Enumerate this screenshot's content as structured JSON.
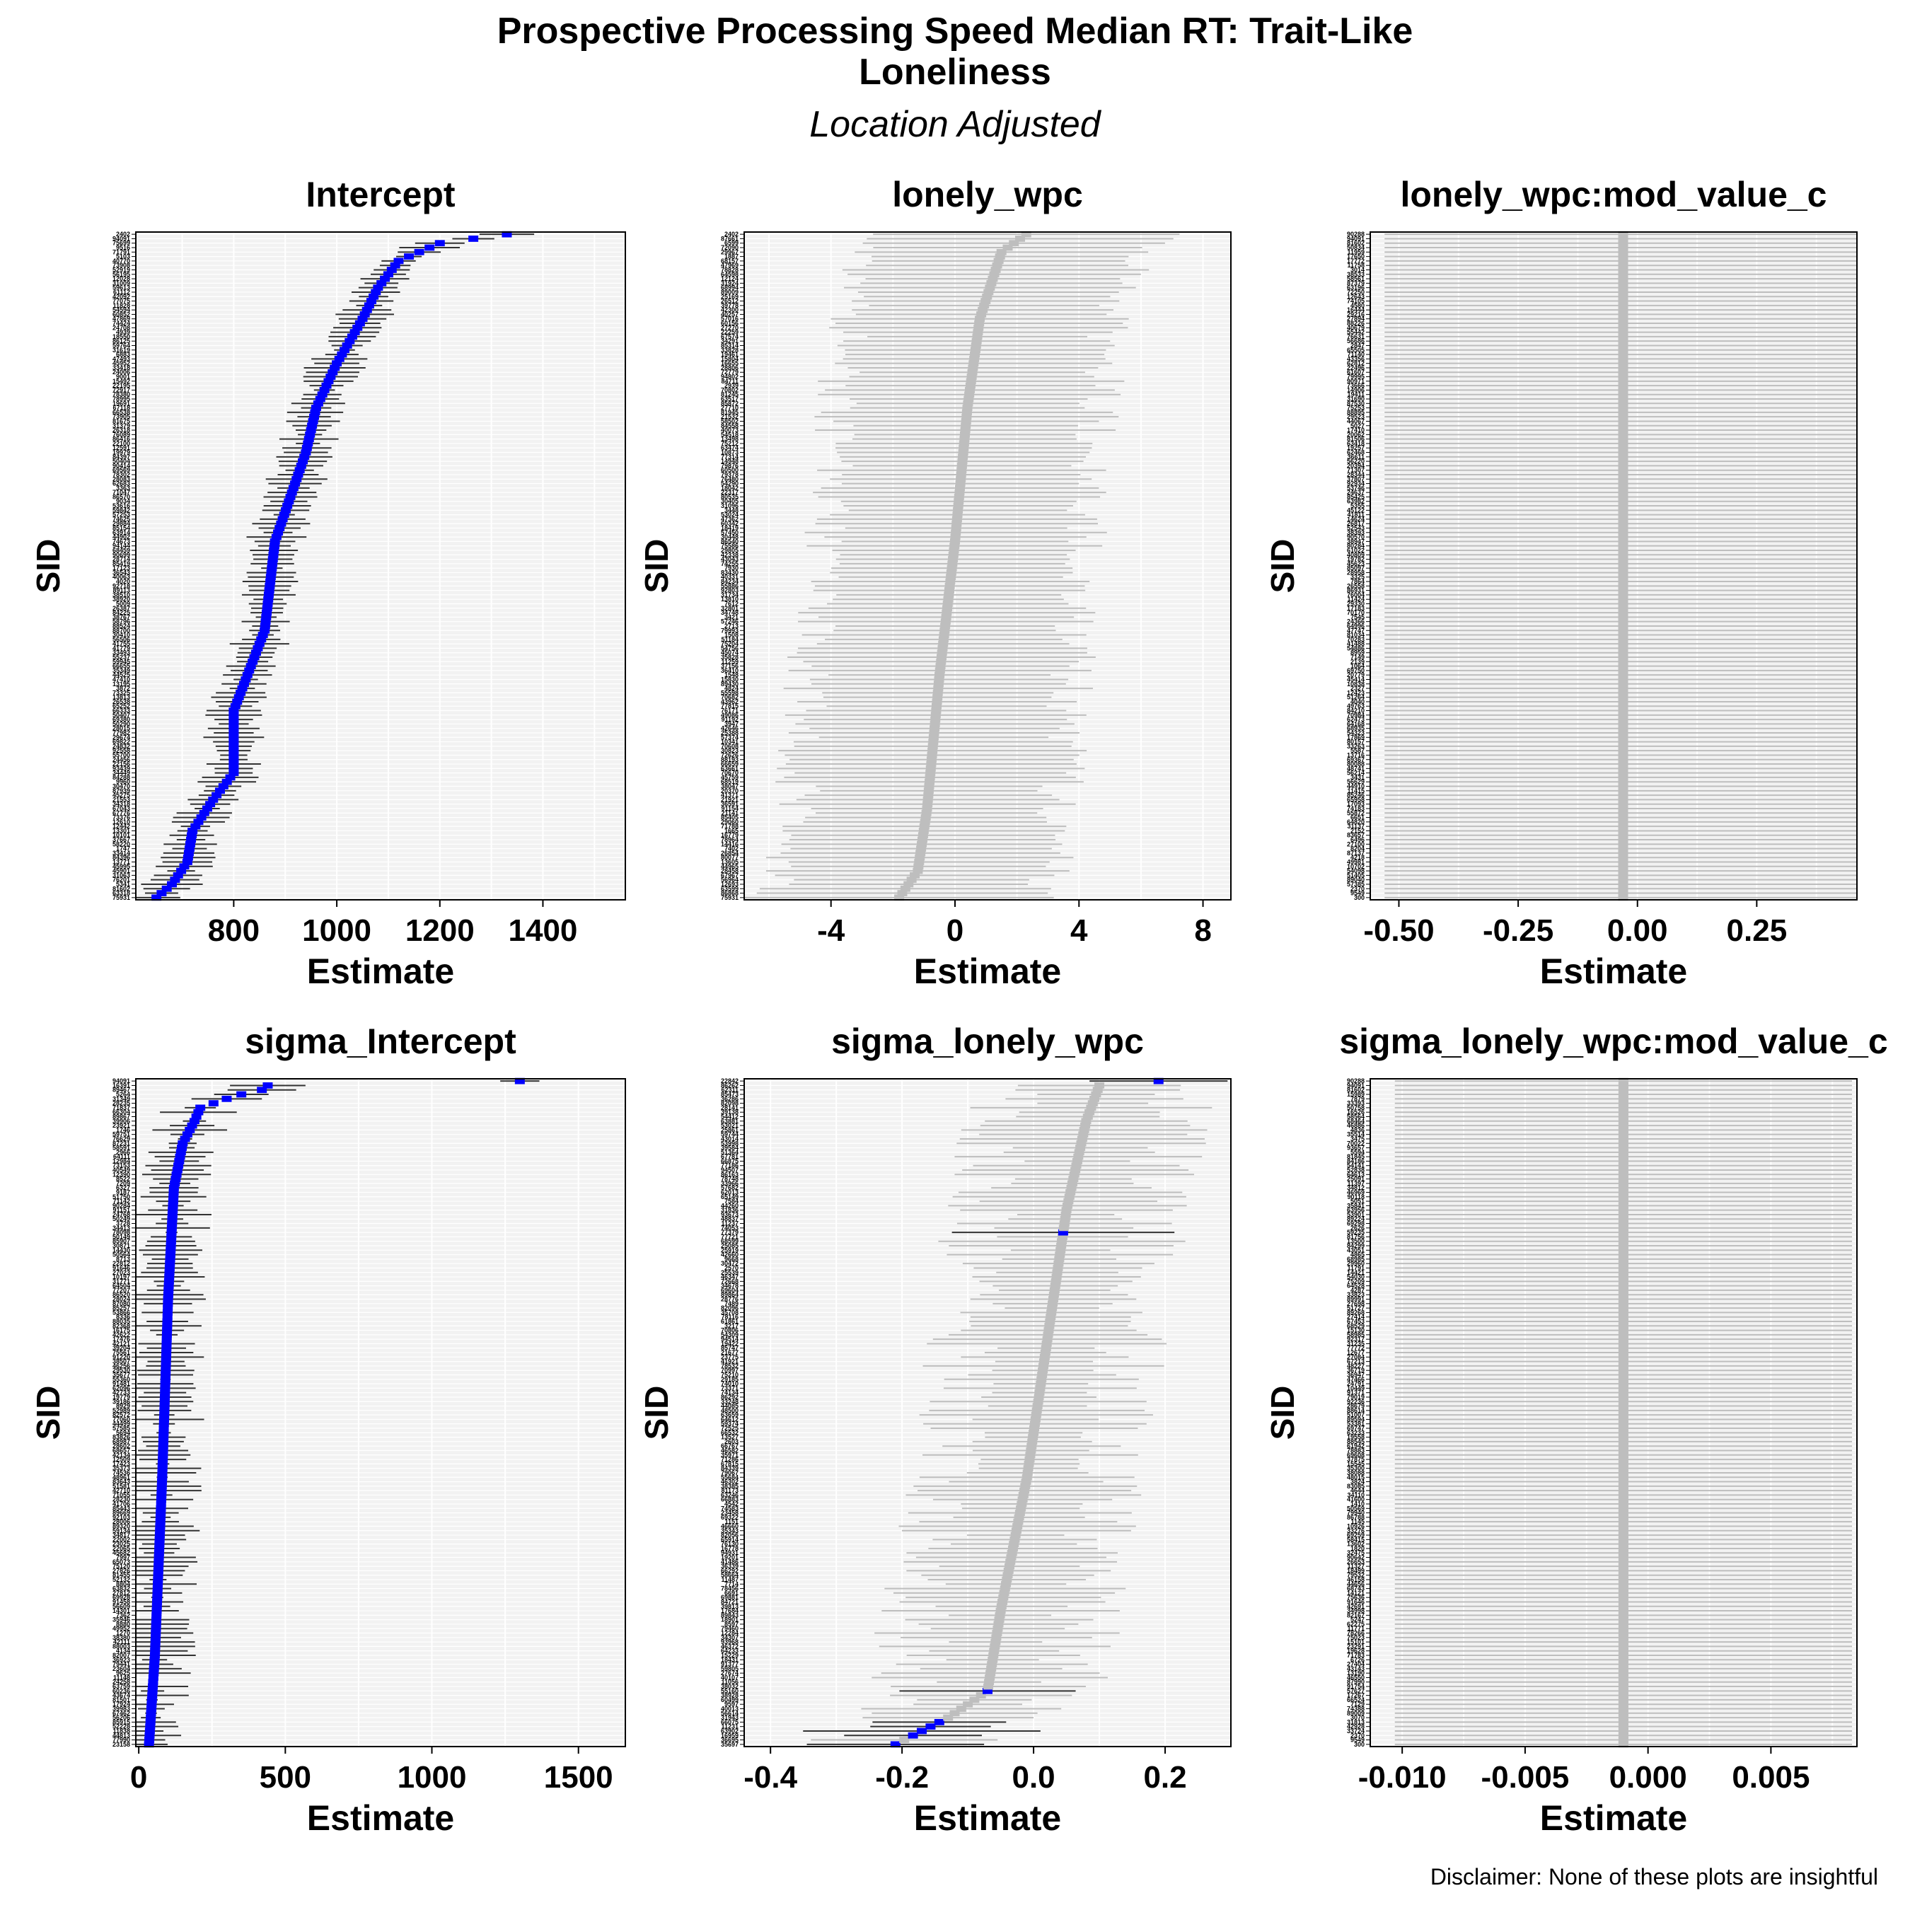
{
  "figure": {
    "title_line1": "Prospective Processing Speed Median RT: Trait-Like",
    "title_line2": "Loneliness",
    "subtitle": "Location Adjusted",
    "caption": "Disclaimer: None of these plots are insightful",
    "colors": {
      "significant": "#0000ff",
      "nonsignificant": "#bebebe",
      "panel_background": "#f2f2f2",
      "grid": "#ffffff",
      "errorbar": "#333333"
    }
  },
  "chart_data": [
    {
      "type": "forest",
      "title": "Intercept",
      "xlabel": "Estimate",
      "ylabel": "SID",
      "xlim": [
        610,
        1560
      ],
      "xticks": [
        800,
        1000,
        1200,
        1400
      ],
      "n_subjects": 150,
      "top_labels": [
        "2402",
        "94091",
        "75699",
        "9516",
        "71791"
      ],
      "bottom_labels": [
        "5341",
        "81602",
        "63318",
        "75931"
      ],
      "estimates_sorted_profile": [
        [
          0,
          650
        ],
        [
          3,
          680
        ],
        [
          8,
          710
        ],
        [
          15,
          720
        ],
        [
          22,
          760
        ],
        [
          28,
          800
        ],
        [
          42,
          800
        ],
        [
          60,
          860
        ],
        [
          80,
          880
        ],
        [
          100,
          940
        ],
        [
          110,
          960
        ],
        [
          120,
          1000
        ],
        [
          130,
          1050
        ],
        [
          137,
          1080
        ],
        [
          143,
          1120
        ],
        [
          147,
          1200
        ],
        [
          149,
          1330
        ]
      ],
      "ci_halfwidth": [
        20,
        60
      ],
      "highlight": "all_significant"
    },
    {
      "type": "forest",
      "title": "lonely_wpc",
      "xlabel": "Estimate",
      "ylabel": "SID",
      "xlim": [
        -6.8,
        8.9
      ],
      "xticks": [
        -4,
        0,
        4,
        8
      ],
      "n_subjects": 150,
      "top_labels": [
        "2402",
        "87661",
        "6599",
        "72090"
      ],
      "bottom_labels": [
        "63599",
        "86868",
        "75931"
      ],
      "estimates_sorted_profile": [
        [
          0,
          -1.8
        ],
        [
          6,
          -1.2
        ],
        [
          20,
          -0.9
        ],
        [
          50,
          -0.5
        ],
        [
          80,
          0.0
        ],
        [
          110,
          0.4
        ],
        [
          130,
          0.8
        ],
        [
          145,
          1.5
        ],
        [
          149,
          2.3
        ]
      ],
      "ci_halfwidth": [
        3.5,
        5.0
      ],
      "highlight": "none_significant"
    },
    {
      "type": "forest",
      "title": "lonely_wpc:mod_value_c",
      "xlabel": "Estimate",
      "ylabel": "SID",
      "xlim": [
        -0.56,
        0.46
      ],
      "xticks": [
        -0.5,
        -0.25,
        0.0,
        0.25
      ],
      "xtick_labels": [
        "-0.50",
        "-0.25",
        "0.00",
        "0.25"
      ],
      "n_subjects": 150,
      "top_labels": [
        "90288",
        "94091",
        "81602"
      ],
      "bottom_labels": [
        "2370",
        "9549",
        "300"
      ],
      "estimates_sorted_profile": [
        [
          0,
          -0.03
        ],
        [
          149,
          -0.03
        ]
      ],
      "ci_halfwidth": [
        0.5,
        0.5
      ],
      "highlight": "none_significant"
    },
    {
      "type": "forest",
      "title": "sigma_Intercept",
      "xlabel": "Estimate",
      "ylabel": "SID",
      "xlim": [
        -10,
        1660
      ],
      "xticks": [
        0,
        500,
        1000,
        1500
      ],
      "n_subjects": 150,
      "top_labels": [
        "94091",
        "16391",
        "89467"
      ],
      "bottom_labels": [
        "44813",
        "77990",
        "23158"
      ],
      "estimates_sorted_profile": [
        [
          0,
          35
        ],
        [
          20,
          55
        ],
        [
          60,
          80
        ],
        [
          100,
          100
        ],
        [
          125,
          120
        ],
        [
          135,
          150
        ],
        [
          140,
          190
        ],
        [
          143,
          210
        ],
        [
          145,
          300
        ],
        [
          146,
          350
        ],
        [
          147,
          420
        ],
        [
          148,
          440
        ],
        [
          149,
          1300
        ]
      ],
      "ci_halfwidth": [
        10,
        140
      ],
      "highlight": "all_significant"
    },
    {
      "type": "forest",
      "title": "sigma_lonely_wpc",
      "xlabel": "Estimate",
      "ylabel": "SID",
      "xlim": [
        -0.44,
        0.3
      ],
      "xticks": [
        -0.4,
        -0.2,
        0.0,
        0.2
      ],
      "xtick_labels": [
        "-0.4",
        "-0.2",
        "0.0",
        "0.2"
      ],
      "n_subjects": 150,
      "top_labels": [
        "22842",
        "86262",
        "62311"
      ],
      "bottom_labels": [
        "16959",
        "36695",
        "35697"
      ],
      "estimates_sorted_profile": [
        [
          0,
          -0.21
        ],
        [
          3,
          -0.17
        ],
        [
          6,
          -0.13
        ],
        [
          12,
          -0.07
        ],
        [
          30,
          -0.05
        ],
        [
          60,
          -0.01
        ],
        [
          90,
          0.02
        ],
        [
          120,
          0.05
        ],
        [
          140,
          0.08
        ],
        [
          148,
          0.1
        ],
        [
          149,
          0.19
        ]
      ],
      "ci_halfwidth": [
        0.07,
        0.19
      ],
      "highlight": "some_significant",
      "significant_ranks": [
        0,
        2,
        3,
        4,
        5,
        12,
        115,
        149
      ]
    },
    {
      "type": "forest",
      "title": "sigma_lonely_wpc:mod_value_c",
      "xlabel": "Estimate",
      "ylabel": "SID",
      "xlim": [
        -0.0113,
        0.0085
      ],
      "xticks": [
        -0.01,
        -0.005,
        0.0,
        0.005
      ],
      "xtick_labels": [
        "-0.010",
        "-0.005",
        "0.000",
        "0.005"
      ],
      "n_subjects": 150,
      "top_labels": [
        "90288",
        "94091",
        "81602"
      ],
      "bottom_labels": [
        "2370",
        "9549",
        "300"
      ],
      "estimates_sorted_profile": [
        [
          0,
          -0.001
        ],
        [
          149,
          -0.001
        ]
      ],
      "ci_halfwidth": [
        0.0093,
        0.0093
      ],
      "highlight": "none_significant"
    }
  ]
}
